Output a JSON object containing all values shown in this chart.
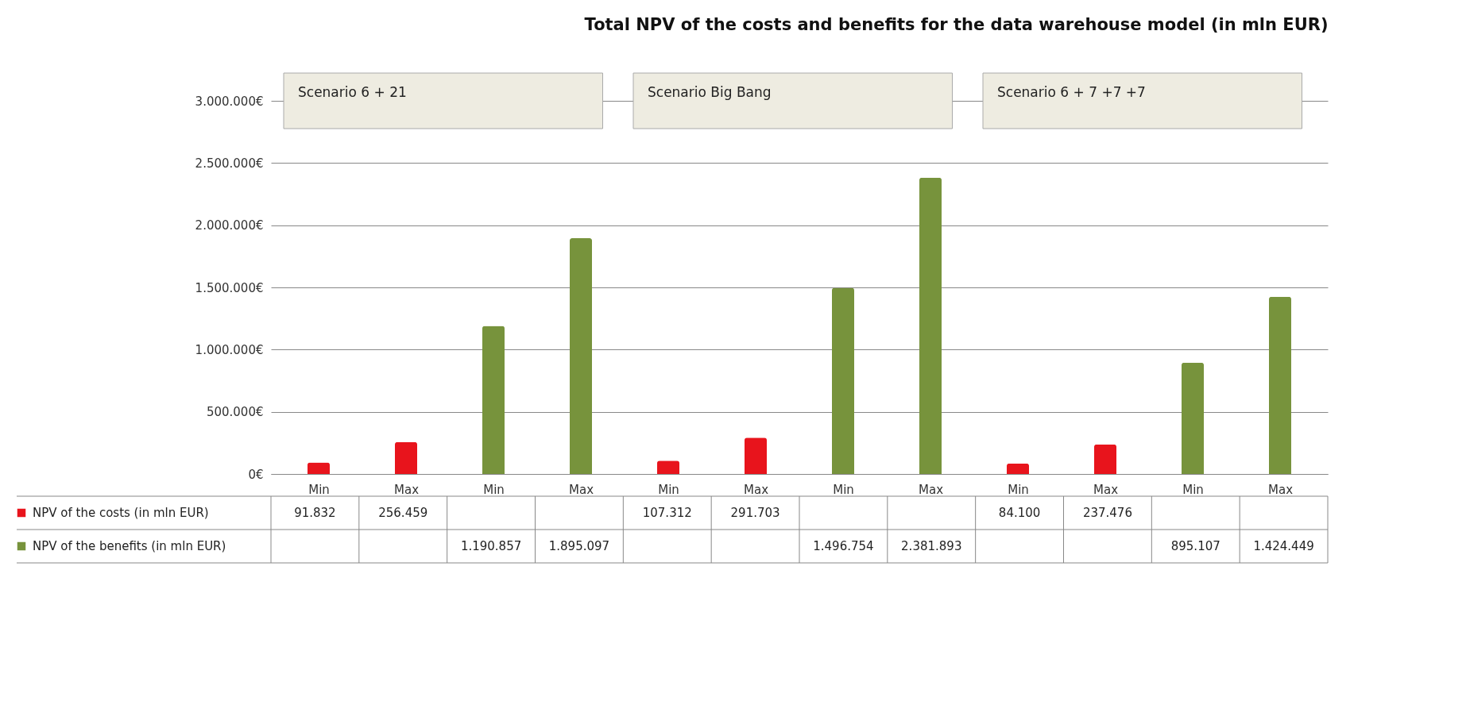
{
  "chart_data": {
    "type": "bar",
    "title": "Total NPV of the costs and benefits for  the data warehouse model (in mln EUR)",
    "categories": [
      "Min",
      "Max",
      "Min",
      "Max",
      "Min",
      "Max",
      "Min",
      "Max",
      "Min",
      "Max",
      "Min",
      "Max"
    ],
    "series": [
      {
        "name": "NPV of the costs (in mln EUR)",
        "color": "#e8141c",
        "values": [
          91832,
          256459,
          null,
          null,
          107312,
          291703,
          null,
          null,
          84100,
          237476,
          null,
          null
        ],
        "value_labels": [
          "91.832",
          "256.459",
          null,
          null,
          "107.312",
          "291.703",
          null,
          null,
          "84.100",
          "237.476",
          null,
          null
        ]
      },
      {
        "name": "NPV of the benefits (in mln EUR)",
        "color": "#77933c",
        "values": [
          null,
          null,
          1190857,
          1895097,
          null,
          null,
          1496754,
          2381893,
          null,
          null,
          895107,
          1424449
        ],
        "value_labels": [
          null,
          null,
          "1.190.857",
          "1.895.097",
          null,
          null,
          "1.496.754",
          "2.381.893",
          null,
          null,
          "895.107",
          "1.424.449"
        ]
      }
    ],
    "ylim": [
      0,
      3000000
    ],
    "yticks": [
      {
        "value": 0,
        "label": "0€"
      },
      {
        "value": 500000,
        "label": "500.000€"
      },
      {
        "value": 1000000,
        "label": "1.000.000€"
      },
      {
        "value": 1500000,
        "label": "1.500.000€"
      },
      {
        "value": 2000000,
        "label": "2.000.000€"
      },
      {
        "value": 2500000,
        "label": "2.500.000€"
      },
      {
        "value": 3000000,
        "label": "3.000.000€"
      }
    ],
    "grid": "y",
    "legend": "bottom left",
    "annotations": [
      "Scenario  6 + 21",
      "Scenario  Big Bang",
      "Scenario 6 + 7 +7 +7"
    ]
  }
}
